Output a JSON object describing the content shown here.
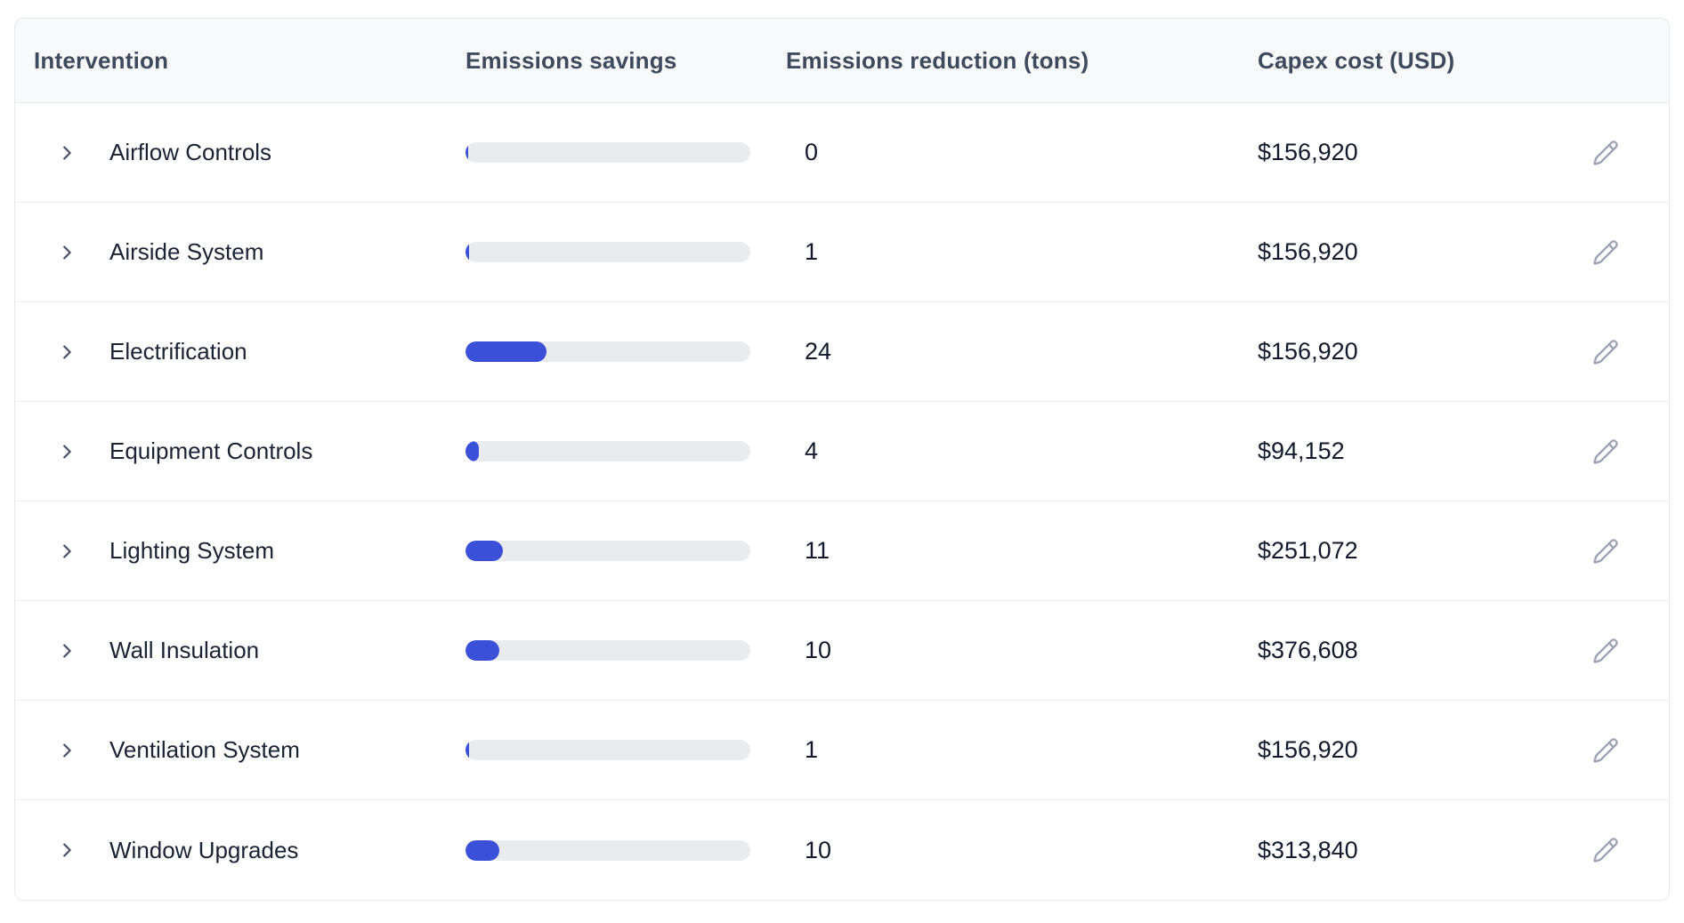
{
  "table": {
    "columns": [
      {
        "label": "Intervention"
      },
      {
        "label": "Emissions savings"
      },
      {
        "label": "Emissions reduction (tons)"
      },
      {
        "label": "Capex cost (USD)"
      }
    ],
    "bar_max": 84,
    "rows": [
      {
        "intervention": "Airflow Controls",
        "reduction": 0,
        "capex": "$156,920"
      },
      {
        "intervention": "Airside System",
        "reduction": 1,
        "capex": "$156,920"
      },
      {
        "intervention": "Electrification",
        "reduction": 24,
        "capex": "$156,920"
      },
      {
        "intervention": "Equipment Controls",
        "reduction": 4,
        "capex": "$94,152"
      },
      {
        "intervention": "Lighting System",
        "reduction": 11,
        "capex": "$251,072"
      },
      {
        "intervention": "Wall Insulation",
        "reduction": 10,
        "capex": "$376,608"
      },
      {
        "intervention": "Ventilation System",
        "reduction": 1,
        "capex": "$156,920"
      },
      {
        "intervention": "Window Upgrades",
        "reduction": 10,
        "capex": "$313,840"
      }
    ]
  },
  "icons": {
    "chevron-right-icon": "›",
    "pencil-icon": "✎"
  },
  "colors": {
    "bar_fill": "#3b50d8",
    "bar_track": "#e9ebef",
    "header_bg": "#f8f9fb",
    "header_text": "#3e4a5d",
    "row_text": "#1a2333",
    "value_text": "#101a2c",
    "card_border": "#e5e8ee"
  }
}
